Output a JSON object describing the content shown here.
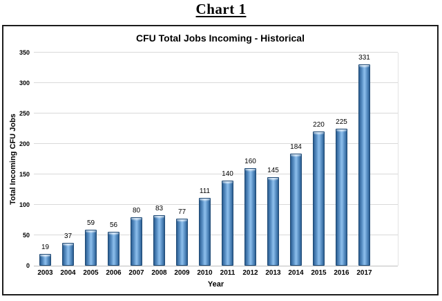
{
  "page": {
    "heading": "Chart 1"
  },
  "chart_data": {
    "type": "bar",
    "title": "CFU Total Jobs Incoming - Historical",
    "xlabel": "Year",
    "ylabel": "Total Incoming CFU Jobs",
    "categories": [
      "2003",
      "2004",
      "2005",
      "2006",
      "2007",
      "2008",
      "2009",
      "2010",
      "2011",
      "2012",
      "2013",
      "2014",
      "2015",
      "2016",
      "2017"
    ],
    "values": [
      19,
      37,
      59,
      56,
      80,
      83,
      77,
      111,
      140,
      160,
      145,
      184,
      220,
      225,
      331
    ],
    "ylim": [
      0,
      350
    ],
    "yticks": [
      0,
      50,
      100,
      150,
      200,
      250,
      300,
      350
    ],
    "grid": true,
    "legend": "none",
    "data_labels": true,
    "bar_color_center": "#88bae8",
    "bar_color_edge": "#27598c",
    "bar_outline_color": "#1f4a75",
    "gridline_color": "#d9d9d9",
    "text_color": "#000000"
  }
}
